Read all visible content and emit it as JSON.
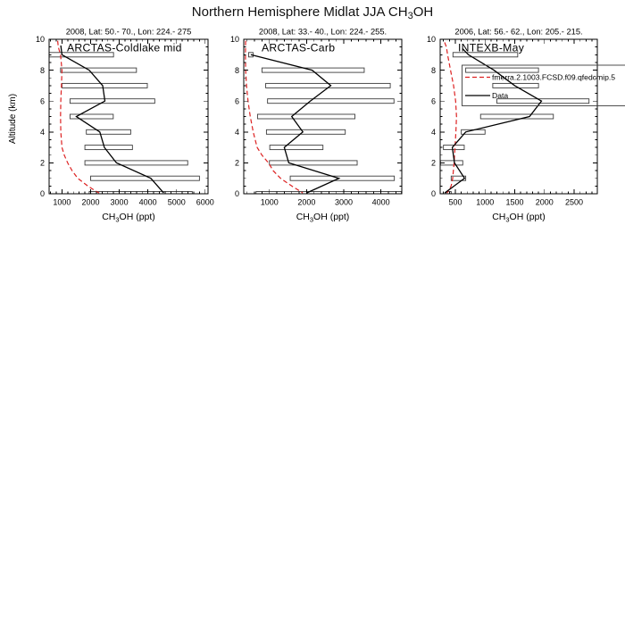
{
  "figure": {
    "main_title": {
      "prefix": "Northern Hemisphere Midlat JJA CH",
      "sub": "3",
      "suffix": "OH"
    }
  },
  "chart_data": [
    {
      "type": "line",
      "panel_title": "2008, Lat: 50.- 70., Lon: 224.- 275",
      "campaign_label": "ARCTAS-Coldlake mid",
      "xlabel": {
        "pre": "CH",
        "sub": "3",
        "post": "OH (ppt)"
      },
      "ylabel": "Altitude (km)",
      "xlim": [
        550,
        6100
      ],
      "ylim": [
        0,
        10
      ],
      "xticks": [
        1000,
        2000,
        3000,
        4000,
        5000,
        6000
      ],
      "yticks": [
        0,
        2,
        4,
        6,
        8,
        10
      ],
      "x_major_step": 1000,
      "x_minor_step": 200,
      "y_minor_step": 0.5,
      "series": [
        {
          "name": "fmerra.2.1003.FCSD.f09.qfedcmip.5",
          "color": "#dd2222",
          "style": "dashed",
          "points_ppt_km": [
            [
              850,
              9.9
            ],
            [
              870,
              9.5
            ],
            [
              950,
              9.0
            ],
            [
              1000,
              8.0
            ],
            [
              980,
              7.0
            ],
            [
              960,
              6.0
            ],
            [
              950,
              5.0
            ],
            [
              960,
              4.0
            ],
            [
              1000,
              3.0
            ],
            [
              1080,
              2.5
            ],
            [
              1200,
              2.0
            ],
            [
              1350,
              1.5
            ],
            [
              1550,
              1.0
            ],
            [
              1900,
              0.5
            ],
            [
              2150,
              0.2
            ],
            [
              2300,
              0.05
            ]
          ]
        },
        {
          "name": "Data",
          "color": "#000000",
          "style": "solid",
          "points_ppt_km": [
            [
              960,
              9.6
            ],
            [
              1000,
              9.0
            ],
            [
              1950,
              8.0
            ],
            [
              2420,
              7.0
            ],
            [
              2500,
              6.0
            ],
            [
              1500,
              5.0
            ],
            [
              2320,
              4.0
            ],
            [
              2480,
              3.0
            ],
            [
              2900,
              2.0
            ],
            [
              4100,
              1.0
            ],
            [
              4550,
              0.05
            ]
          ]
        }
      ],
      "variability_boxes": [
        {
          "alt_km": 9,
          "min_ppt": 500,
          "max_ppt": 2800
        },
        {
          "alt_km": 8,
          "min_ppt": 950,
          "max_ppt": 3600
        },
        {
          "alt_km": 7,
          "min_ppt": 1000,
          "max_ppt": 3980
        },
        {
          "alt_km": 6,
          "min_ppt": 1280,
          "max_ppt": 4240
        },
        {
          "alt_km": 5,
          "min_ppt": 1280,
          "max_ppt": 2790
        },
        {
          "alt_km": 4,
          "min_ppt": 1850,
          "max_ppt": 3400
        },
        {
          "alt_km": 3,
          "min_ppt": 1800,
          "max_ppt": 3460
        },
        {
          "alt_km": 2,
          "min_ppt": 1800,
          "max_ppt": 5390
        },
        {
          "alt_km": 1,
          "min_ppt": 2000,
          "max_ppt": 5800
        },
        {
          "alt_km": 0,
          "min_ppt": 1950,
          "max_ppt": 5550
        }
      ]
    },
    {
      "type": "line",
      "panel_title": "2008, Lat: 33.- 40., Lon: 224.- 255.",
      "campaign_label": "ARCTAS-Carb",
      "xlabel": {
        "pre": "CH",
        "sub": "3",
        "post": "OH (ppt)"
      },
      "ylabel": "",
      "xlim": [
        310,
        4560
      ],
      "ylim": [
        0,
        10
      ],
      "xticks": [
        1000,
        2000,
        3000,
        4000
      ],
      "yticks": [
        0,
        2,
        4,
        6,
        8,
        10
      ],
      "x_major_step": 1000,
      "x_minor_step": 200,
      "y_minor_step": 0.5,
      "series": [
        {
          "name": "fmerra.2.1003.FCSD.f09.qfedcmip.5",
          "color": "#dd2222",
          "style": "dashed",
          "points_ppt_km": [
            [
              360,
              9.9
            ],
            [
              355,
              9.0
            ],
            [
              360,
              8.0
            ],
            [
              385,
              7.0
            ],
            [
              425,
              6.0
            ],
            [
              485,
              5.0
            ],
            [
              565,
              4.0
            ],
            [
              670,
              3.0
            ],
            [
              800,
              2.5
            ],
            [
              975,
              2.0
            ],
            [
              1100,
              1.5
            ],
            [
              1300,
              1.0
            ],
            [
              1600,
              0.5
            ],
            [
              1900,
              0.05
            ]
          ]
        },
        {
          "name": "Data",
          "color": "#000000",
          "style": "solid",
          "points_ppt_km": [
            [
              500,
              9.0
            ],
            [
              2150,
              8.0
            ],
            [
              2650,
              7.0
            ],
            [
              2100,
              6.0
            ],
            [
              1600,
              5.0
            ],
            [
              1900,
              4.0
            ],
            [
              1400,
              3.0
            ],
            [
              1520,
              2.0
            ],
            [
              2870,
              1.0
            ],
            [
              2000,
              0.05
            ]
          ]
        }
      ],
      "variability_boxes": [
        {
          "alt_km": 9,
          "min_ppt": 440,
          "max_ppt": 560
        },
        {
          "alt_km": 8,
          "min_ppt": 800,
          "max_ppt": 3550
        },
        {
          "alt_km": 7,
          "min_ppt": 900,
          "max_ppt": 4250
        },
        {
          "alt_km": 6,
          "min_ppt": 950,
          "max_ppt": 4350
        },
        {
          "alt_km": 5,
          "min_ppt": 680,
          "max_ppt": 3300
        },
        {
          "alt_km": 4,
          "min_ppt": 920,
          "max_ppt": 3040
        },
        {
          "alt_km": 3,
          "min_ppt": 1010,
          "max_ppt": 2440
        },
        {
          "alt_km": 2,
          "min_ppt": 1000,
          "max_ppt": 3360
        },
        {
          "alt_km": 1,
          "min_ppt": 1560,
          "max_ppt": 4360
        },
        {
          "alt_km": 0,
          "min_ppt": 640,
          "max_ppt": 4550
        }
      ]
    },
    {
      "type": "line",
      "panel_title": "2006, Lat: 56.- 62., Lon: 205.- 215.",
      "campaign_label": "INTEXB-May",
      "xlabel": {
        "pre": "CH",
        "sub": "3",
        "post": "OH (ppt)"
      },
      "ylabel": "",
      "xlim": [
        245,
        2890
      ],
      "ylim": [
        0,
        10
      ],
      "xticks": [
        500,
        1000,
        1500,
        2000,
        2500
      ],
      "yticks": [
        0,
        2,
        4,
        6,
        8,
        10
      ],
      "x_major_step": 500,
      "x_minor_step": 100,
      "y_minor_step": 0.5,
      "series": [
        {
          "name": "fmerra.2.1003.FCSD.f09.qfedcmip.5",
          "color": "#dd2222",
          "style": "dashed",
          "points_ppt_km": [
            [
              320,
              9.8
            ],
            [
              350,
              9.5
            ],
            [
              370,
              9.0
            ],
            [
              420,
              8.0
            ],
            [
              470,
              7.0
            ],
            [
              505,
              6.0
            ],
            [
              520,
              5.0
            ],
            [
              510,
              4.0
            ],
            [
              495,
              3.0
            ],
            [
              480,
              2.0
            ],
            [
              455,
              1.0
            ],
            [
              430,
              0.5
            ],
            [
              360,
              0.05
            ]
          ]
        },
        {
          "name": "Data",
          "color": "#000000",
          "style": "solid",
          "points_ppt_km": [
            [
              620,
              9.4
            ],
            [
              720,
              9.0
            ],
            [
              1150,
              8.0
            ],
            [
              1500,
              7.0
            ],
            [
              1950,
              6.0
            ],
            [
              1750,
              5.0
            ],
            [
              675,
              4.0
            ],
            [
              450,
              3.0
            ],
            [
              485,
              2.0
            ],
            [
              655,
              1.0
            ],
            [
              320,
              0.05
            ]
          ]
        }
      ],
      "variability_boxes": [
        {
          "alt_km": 9,
          "min_ppt": 460,
          "max_ppt": 1550
        },
        {
          "alt_km": 8,
          "min_ppt": 675,
          "max_ppt": 1900
        },
        {
          "alt_km": 7,
          "min_ppt": 1130,
          "max_ppt": 1900
        },
        {
          "alt_km": 6,
          "min_ppt": 1200,
          "max_ppt": 2750
        },
        {
          "alt_km": 5,
          "min_ppt": 925,
          "max_ppt": 2150
        },
        {
          "alt_km": 4,
          "min_ppt": 600,
          "max_ppt": 1000
        },
        {
          "alt_km": 3,
          "min_ppt": 300,
          "max_ppt": 650
        },
        {
          "alt_km": 2,
          "min_ppt": 250,
          "max_ppt": 625
        },
        {
          "alt_km": 1,
          "min_ppt": 430,
          "max_ppt": 675
        },
        {
          "alt_km": 0,
          "min_ppt": 350,
          "max_ppt": 430
        }
      ],
      "legend": {
        "position": "upper-right, overflowing right edge",
        "entries": [
          "fmerra.2.1003.FCSD.f09.qfedcmip.5",
          "Data"
        ]
      }
    }
  ]
}
